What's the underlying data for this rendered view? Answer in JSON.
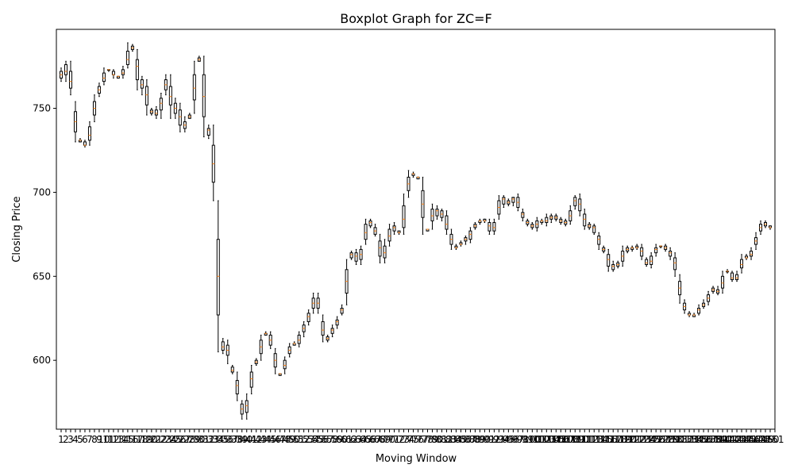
{
  "chart_data": {
    "type": "box",
    "title": "Boxplot Graph for ZC=F",
    "xlabel": "Moving Window",
    "ylabel": "Closing Price",
    "ylim": [
      559,
      797
    ],
    "yticks": [
      600,
      650,
      700,
      750
    ],
    "grid": false,
    "legend": "none",
    "colors": {
      "box": "#000000",
      "median": "#ff7f0e"
    },
    "windows": [
      [
        768,
        770,
        772,
        766,
        774
      ],
      [
        770,
        772,
        776,
        766,
        778
      ],
      [
        762,
        766,
        772,
        758,
        778
      ],
      [
        736,
        742,
        748,
        730,
        754
      ],
      [
        730,
        731,
        731,
        730,
        732
      ],
      [
        728,
        728,
        730,
        727,
        731
      ],
      [
        731,
        734,
        739,
        728,
        742
      ],
      [
        746,
        750,
        754,
        742,
        758
      ],
      [
        759,
        761,
        763,
        757,
        765
      ],
      [
        766,
        768,
        771,
        764,
        774
      ],
      [
        773,
        773,
        773,
        772,
        773
      ],
      [
        770,
        770,
        772,
        768,
        773
      ],
      [
        768,
        769,
        769,
        768,
        769
      ],
      [
        770,
        771,
        773,
        768,
        775
      ],
      [
        776,
        779,
        784,
        774,
        789
      ],
      [
        785,
        786,
        787,
        784,
        788
      ],
      [
        767,
        775,
        779,
        761,
        785
      ],
      [
        762,
        764,
        767,
        758,
        769
      ],
      [
        752,
        758,
        763,
        746,
        767
      ],
      [
        747,
        748,
        749,
        746,
        750
      ],
      [
        746,
        747,
        749,
        744,
        751
      ],
      [
        749,
        753,
        756,
        744,
        759
      ],
      [
        761,
        764,
        767,
        758,
        770
      ],
      [
        752,
        757,
        763,
        744,
        770
      ],
      [
        747,
        750,
        753,
        744,
        756
      ],
      [
        740,
        745,
        749,
        736,
        753
      ],
      [
        738,
        740,
        742,
        736,
        745
      ],
      [
        744,
        745,
        746,
        744,
        747
      ],
      [
        755,
        762,
        770,
        747,
        778
      ],
      [
        778,
        779,
        780,
        778,
        781
      ],
      [
        745,
        757,
        770,
        733,
        781
      ],
      [
        734,
        737,
        738,
        732,
        740
      ],
      [
        706,
        717,
        728,
        695,
        740
      ],
      [
        627,
        650,
        672,
        605,
        695
      ],
      [
        606,
        608,
        611,
        604,
        613
      ],
      [
        603,
        606,
        609,
        598,
        612
      ],
      [
        593,
        594,
        596,
        592,
        597
      ],
      [
        580,
        585,
        588,
        576,
        593
      ],
      [
        568,
        571,
        574,
        565,
        576
      ],
      [
        569,
        573,
        576,
        565,
        580
      ],
      [
        584,
        589,
        593,
        580,
        597
      ],
      [
        598,
        599,
        600,
        597,
        601
      ],
      [
        604,
        608,
        612,
        600,
        615
      ],
      [
        615,
        616,
        616,
        615,
        617
      ],
      [
        609,
        612,
        615,
        607,
        617
      ],
      [
        596,
        600,
        604,
        592,
        607
      ],
      [
        591,
        592,
        592,
        591,
        592
      ],
      [
        595,
        597,
        600,
        592,
        602
      ],
      [
        604,
        606,
        608,
        602,
        610
      ],
      [
        609,
        610,
        610,
        609,
        611
      ],
      [
        610,
        612,
        615,
        608,
        617
      ],
      [
        617,
        619,
        621,
        614,
        623
      ],
      [
        623,
        626,
        628,
        621,
        630
      ],
      [
        631,
        634,
        637,
        628,
        640
      ],
      [
        631,
        634,
        637,
        628,
        640
      ],
      [
        615,
        618,
        623,
        611,
        627
      ],
      [
        612,
        613,
        614,
        611,
        615
      ],
      [
        616,
        618,
        619,
        614,
        621
      ],
      [
        621,
        623,
        624,
        619,
        626
      ],
      [
        628,
        630,
        631,
        627,
        633
      ],
      [
        640,
        647,
        654,
        633,
        660
      ],
      [
        661,
        663,
        664,
        660,
        665
      ],
      [
        659,
        662,
        664,
        657,
        666
      ],
      [
        660,
        663,
        666,
        657,
        668
      ],
      [
        672,
        676,
        681,
        669,
        684
      ],
      [
        680,
        682,
        683,
        679,
        684
      ],
      [
        675,
        677,
        679,
        674,
        681
      ],
      [
        662,
        667,
        671,
        658,
        675
      ],
      [
        661,
        664,
        668,
        658,
        672
      ],
      [
        671,
        674,
        678,
        668,
        681
      ],
      [
        677,
        679,
        680,
        675,
        682
      ],
      [
        676,
        676,
        677,
        675,
        677
      ],
      [
        679,
        684,
        692,
        675,
        699
      ],
      [
        701,
        705,
        709,
        697,
        713
      ],
      [
        710,
        711,
        711,
        709,
        712
      ],
      [
        708,
        709,
        709,
        708,
        709
      ],
      [
        685,
        693,
        701,
        675,
        709
      ],
      [
        677,
        678,
        678,
        677,
        678
      ],
      [
        683,
        686,
        690,
        678,
        693
      ],
      [
        686,
        689,
        690,
        684,
        692
      ],
      [
        685,
        687,
        689,
        683,
        690
      ],
      [
        678,
        681,
        686,
        675,
        689
      ],
      [
        669,
        672,
        675,
        666,
        678
      ],
      [
        667,
        667,
        668,
        666,
        669
      ],
      [
        669,
        669,
        670,
        668,
        671
      ],
      [
        671,
        672,
        673,
        669,
        674
      ],
      [
        672,
        675,
        677,
        670,
        679
      ],
      [
        679,
        680,
        681,
        678,
        682
      ],
      [
        682,
        683,
        683,
        681,
        684
      ],
      [
        683,
        683,
        684,
        682,
        684
      ],
      [
        677,
        680,
        682,
        675,
        684
      ],
      [
        677,
        679,
        682,
        675,
        684
      ],
      [
        687,
        691,
        695,
        684,
        698
      ],
      [
        693,
        696,
        697,
        691,
        698
      ],
      [
        693,
        694,
        695,
        692,
        696
      ],
      [
        694,
        696,
        697,
        692,
        697
      ],
      [
        691,
        694,
        697,
        689,
        699
      ],
      [
        685,
        687,
        688,
        683,
        690
      ],
      [
        681,
        682,
        683,
        680,
        684
      ],
      [
        679,
        680,
        681,
        678,
        682
      ],
      [
        679,
        681,
        683,
        677,
        685
      ],
      [
        682,
        683,
        683,
        681,
        684
      ],
      [
        682,
        683,
        685,
        680,
        687
      ],
      [
        684,
        685,
        686,
        682,
        687
      ],
      [
        684,
        685,
        686,
        683,
        687
      ],
      [
        682,
        683,
        684,
        681,
        685
      ],
      [
        681,
        682,
        683,
        680,
        684
      ],
      [
        683,
        686,
        689,
        681,
        692
      ],
      [
        692,
        695,
        697,
        690,
        698
      ],
      [
        689,
        693,
        696,
        686,
        699
      ],
      [
        680,
        684,
        687,
        678,
        690
      ],
      [
        679,
        680,
        681,
        678,
        682
      ],
      [
        676,
        679,
        680,
        675,
        681
      ],
      [
        669,
        672,
        674,
        666,
        676
      ],
      [
        665,
        666,
        667,
        664,
        668
      ],
      [
        656,
        660,
        663,
        653,
        666
      ],
      [
        654,
        656,
        657,
        653,
        659
      ],
      [
        656,
        657,
        658,
        655,
        659
      ],
      [
        659,
        662,
        665,
        656,
        668
      ],
      [
        665,
        666,
        667,
        664,
        668
      ],
      [
        666,
        667,
        667,
        665,
        668
      ],
      [
        667,
        667,
        668,
        666,
        669
      ],
      [
        662,
        665,
        667,
        660,
        669
      ],
      [
        657,
        658,
        660,
        656,
        661
      ],
      [
        657,
        659,
        662,
        655,
        664
      ],
      [
        664,
        666,
        667,
        662,
        669
      ],
      [
        668,
        668,
        668,
        667,
        668
      ],
      [
        666,
        667,
        668,
        665,
        669
      ],
      [
        662,
        664,
        665,
        660,
        667
      ],
      [
        654,
        658,
        661,
        650,
        664
      ],
      [
        639,
        643,
        647,
        634,
        651
      ],
      [
        630,
        632,
        634,
        628,
        636
      ],
      [
        627,
        627,
        628,
        626,
        629
      ],
      [
        626,
        627,
        627,
        626,
        628
      ],
      [
        628,
        630,
        631,
        627,
        633
      ],
      [
        632,
        633,
        634,
        631,
        636
      ],
      [
        635,
        637,
        639,
        633,
        641
      ],
      [
        641,
        642,
        643,
        640,
        644
      ],
      [
        640,
        641,
        642,
        639,
        644
      ],
      [
        643,
        646,
        650,
        640,
        653
      ],
      [
        653,
        653,
        653,
        652,
        654
      ],
      [
        648,
        649,
        652,
        647,
        653
      ],
      [
        648,
        649,
        651,
        647,
        653
      ],
      [
        655,
        657,
        660,
        652,
        663
      ],
      [
        661,
        661,
        662,
        660,
        663
      ],
      [
        662,
        663,
        665,
        660,
        667
      ],
      [
        669,
        671,
        673,
        666,
        676
      ],
      [
        677,
        679,
        681,
        675,
        683
      ],
      [
        680,
        681,
        682,
        679,
        683
      ],
      [
        679,
        679,
        680,
        678,
        680
      ]
    ],
    "xticklabels_count": 151
  }
}
